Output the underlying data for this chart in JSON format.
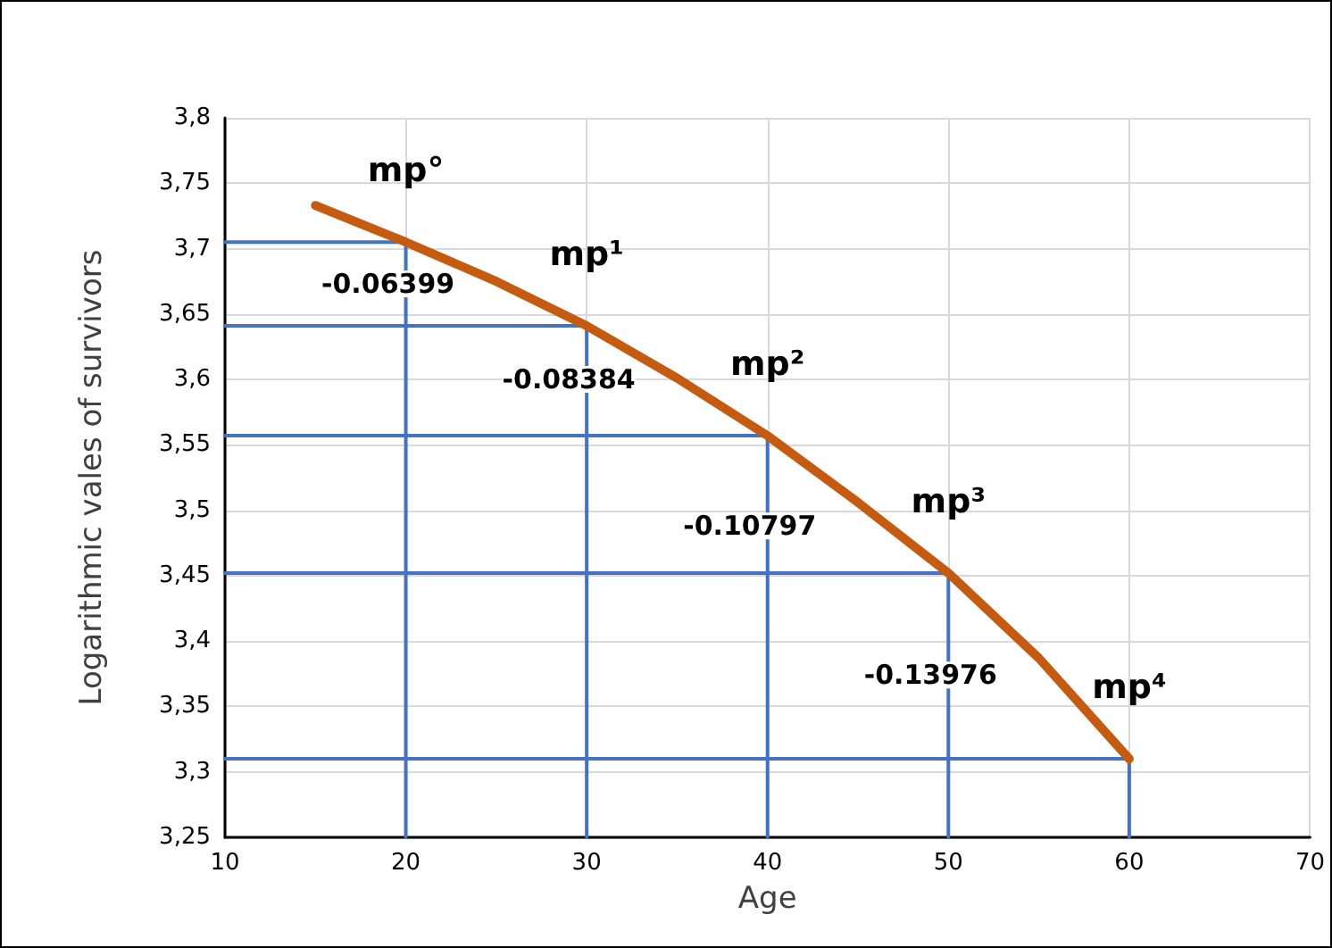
{
  "chart_data": {
    "type": "line",
    "xlabel": "Age",
    "ylabel": "Logarithmic vales of survivors",
    "grid": true,
    "marker": "none",
    "line_style": "solid",
    "xlim": [
      10,
      70
    ],
    "xticks": [
      10,
      20,
      30,
      40,
      50,
      60,
      70
    ],
    "ylim": [
      3.25,
      3.8
    ],
    "yticks": [
      {
        "value": 3.25,
        "label": "3,25"
      },
      {
        "value": 3.3,
        "label": "3,3"
      },
      {
        "value": 3.35,
        "label": "3,35"
      },
      {
        "value": 3.4,
        "label": "3,4"
      },
      {
        "value": 3.45,
        "label": "3,45"
      },
      {
        "value": 3.5,
        "label": "3,5"
      },
      {
        "value": 3.55,
        "label": "3,55"
      },
      {
        "value": 3.6,
        "label": "3,6"
      },
      {
        "value": 3.65,
        "label": "3,65"
      },
      {
        "value": 3.7,
        "label": "3,7"
      },
      {
        "value": 3.75,
        "label": "3,75"
      },
      {
        "value": 3.8,
        "label": "3,8"
      }
    ],
    "series": [
      {
        "color": "#4472c4",
        "x": [
          10,
          20,
          20
        ],
        "values": [
          3.705,
          3.705,
          3.25
        ]
      },
      {
        "color": "#4472c4",
        "x": [
          10,
          30,
          30
        ],
        "values": [
          3.641,
          3.641,
          3.25
        ]
      },
      {
        "color": "#4472c4",
        "x": [
          10,
          40,
          40
        ],
        "values": [
          3.557,
          3.557,
          3.25
        ]
      },
      {
        "color": "#4472c4",
        "x": [
          10,
          50,
          50
        ],
        "values": [
          3.452,
          3.452,
          3.25
        ]
      },
      {
        "color": "#4472c4",
        "x": [
          10,
          60,
          60
        ],
        "values": [
          3.31,
          3.31,
          3.25
        ]
      },
      {
        "color": "#c55a11",
        "x": [
          15,
          20,
          25,
          30,
          35,
          40,
          45,
          50,
          55,
          60
        ],
        "values": [
          3.733,
          3.705,
          3.675,
          3.641,
          3.601,
          3.557,
          3.506,
          3.452,
          3.387,
          3.31
        ]
      }
    ],
    "annotations": [
      {
        "text": "mp°",
        "x": 20,
        "y": 3.705
      },
      {
        "text": "mp¹",
        "x": 30,
        "y": 3.641
      },
      {
        "text": "mp²",
        "x": 40,
        "y": 3.557
      },
      {
        "text": "mp³",
        "x": 50,
        "y": 3.452
      },
      {
        "text": "mp⁴",
        "x": 60,
        "y": 3.31
      },
      {
        "text": "-0.06399",
        "x": 20,
        "y": 3.673
      },
      {
        "text": "-0.08384",
        "x": 30,
        "y": 3.6
      },
      {
        "text": "-0.10797",
        "x": 40,
        "y": 3.488
      },
      {
        "text": "-0.13976",
        "x": 50,
        "y": 3.374
      }
    ]
  }
}
